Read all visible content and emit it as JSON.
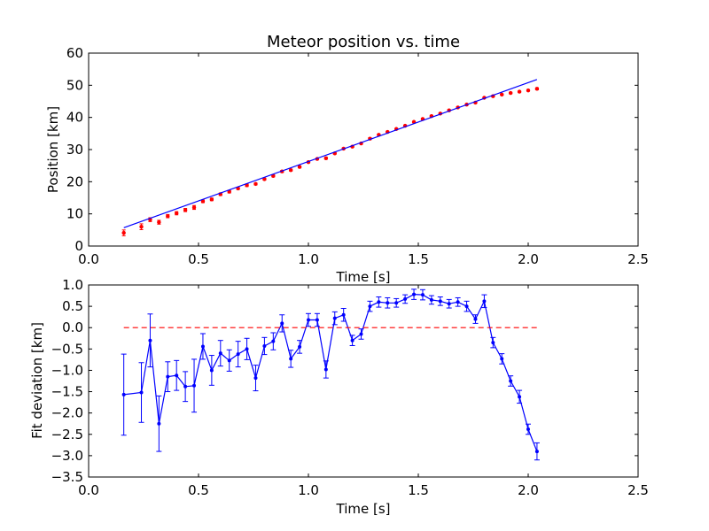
{
  "figure": {
    "title": "Meteor position vs. time"
  },
  "chart_data": [
    {
      "type": "scatter",
      "title": "Meteor position vs. time",
      "xlabel": "Time [s]",
      "ylabel": "Position [km]",
      "xlim": [
        0.0,
        2.5
      ],
      "ylim": [
        0,
        60
      ],
      "xticks": [
        0.0,
        0.5,
        1.0,
        1.5,
        2.0,
        2.5
      ],
      "yticks": [
        0,
        10,
        20,
        30,
        40,
        50,
        60
      ],
      "xtick_labels": [
        "0.0",
        "0.5",
        "1.0",
        "1.5",
        "2.0",
        "2.5"
      ],
      "ytick_labels": [
        "0",
        "10",
        "20",
        "30",
        "40",
        "50",
        "60"
      ],
      "grid": false,
      "series": [
        {
          "style": "error-points",
          "color": "#ff0000",
          "x": [
            0.16,
            0.24,
            0.28,
            0.32,
            0.36,
            0.4,
            0.44,
            0.48,
            0.52,
            0.56,
            0.6,
            0.64,
            0.68,
            0.72,
            0.76,
            0.8,
            0.84,
            0.88,
            0.92,
            0.96,
            1.0,
            1.04,
            1.08,
            1.12,
            1.16,
            1.2,
            1.24,
            1.28,
            1.32,
            1.36,
            1.4,
            1.44,
            1.48,
            1.52,
            1.56,
            1.6,
            1.64,
            1.68,
            1.72,
            1.76,
            1.8,
            1.84,
            1.88,
            1.92,
            1.96,
            2.0,
            2.04
          ],
          "y": [
            4.1,
            6.0,
            8.2,
            7.4,
            9.3,
            10.2,
            11.2,
            12.0,
            13.9,
            14.5,
            16.1,
            16.9,
            17.9,
            18.9,
            19.3,
            20.8,
            21.8,
            23.2,
            23.6,
            24.6,
            26.1,
            27.1,
            27.3,
            28.8,
            30.3,
            30.9,
            31.9,
            33.4,
            34.6,
            35.5,
            36.4,
            37.4,
            38.6,
            39.5,
            40.4,
            41.2,
            42.2,
            43.1,
            44.0,
            44.6,
            46.1,
            46.6,
            47.1,
            47.6,
            48.0,
            48.4,
            48.9
          ],
          "err": [
            0.9,
            0.9,
            0.6,
            0.6,
            0.5,
            0.5,
            0.5,
            0.6,
            0.4,
            0.4,
            0.4,
            0.4,
            0.3,
            0.4,
            0.3,
            0.3,
            0.3,
            0.3,
            0.3,
            0.3,
            0.2,
            0.2,
            0.3,
            0.2,
            0.2,
            0.2,
            0.2,
            0.3,
            0.2,
            0.2,
            0.2,
            0.2,
            0.2,
            0.2,
            0.2,
            0.2,
            0.2,
            0.2,
            0.2,
            0.2,
            0.2,
            0.2,
            0.2,
            0.2,
            0.2,
            0.2,
            0.3
          ]
        },
        {
          "style": "line",
          "color": "#0000ff",
          "x": [
            0.16,
            2.04
          ],
          "y": [
            5.7,
            51.8
          ]
        }
      ]
    },
    {
      "type": "line",
      "title": "",
      "xlabel": "Time [s]",
      "ylabel": "Fit deviation [km]",
      "xlim": [
        0.0,
        2.5
      ],
      "ylim": [
        -3.5,
        1.0
      ],
      "xticks": [
        0.0,
        0.5,
        1.0,
        1.5,
        2.0,
        2.5
      ],
      "yticks": [
        1.0,
        0.5,
        0.0,
        -0.5,
        -1.0,
        -1.5,
        -2.0,
        -2.5,
        -3.0,
        -3.5
      ],
      "xtick_labels": [
        "0.0",
        "0.5",
        "1.0",
        "1.5",
        "2.0",
        "2.5"
      ],
      "ytick_labels": [
        "1.0",
        "0.5",
        "0.0",
        "−0.5",
        "−1.0",
        "−1.5",
        "−2.0",
        "−2.5",
        "−3.0",
        "−3.5"
      ],
      "grid": false,
      "series": [
        {
          "style": "line-errorbar",
          "color": "#0000ff",
          "x": [
            0.16,
            0.24,
            0.28,
            0.32,
            0.36,
            0.4,
            0.44,
            0.48,
            0.52,
            0.56,
            0.6,
            0.64,
            0.68,
            0.72,
            0.76,
            0.8,
            0.84,
            0.88,
            0.92,
            0.96,
            1.0,
            1.04,
            1.08,
            1.12,
            1.16,
            1.2,
            1.24,
            1.28,
            1.32,
            1.36,
            1.4,
            1.44,
            1.48,
            1.52,
            1.56,
            1.6,
            1.64,
            1.68,
            1.72,
            1.76,
            1.8,
            1.84,
            1.88,
            1.92,
            1.96,
            2.0,
            2.04
          ],
          "y": [
            -1.57,
            -1.52,
            -0.3,
            -2.25,
            -1.15,
            -1.12,
            -1.38,
            -1.36,
            -0.44,
            -1.0,
            -0.6,
            -0.77,
            -0.62,
            -0.5,
            -1.18,
            -0.43,
            -0.32,
            0.1,
            -0.73,
            -0.45,
            0.18,
            0.18,
            -0.98,
            0.22,
            0.3,
            -0.3,
            -0.15,
            0.5,
            0.6,
            0.58,
            0.58,
            0.67,
            0.78,
            0.77,
            0.65,
            0.62,
            0.56,
            0.6,
            0.5,
            0.2,
            0.62,
            -0.35,
            -0.73,
            -1.25,
            -1.62,
            -2.38,
            -2.9
          ],
          "err": [
            0.95,
            0.7,
            0.62,
            0.65,
            0.35,
            0.35,
            0.35,
            0.62,
            0.3,
            0.35,
            0.3,
            0.25,
            0.3,
            0.25,
            0.3,
            0.2,
            0.2,
            0.2,
            0.2,
            0.15,
            0.15,
            0.15,
            0.2,
            0.15,
            0.15,
            0.12,
            0.12,
            0.12,
            0.12,
            0.12,
            0.1,
            0.1,
            0.12,
            0.12,
            0.1,
            0.1,
            0.1,
            0.1,
            0.12,
            0.1,
            0.15,
            0.12,
            0.12,
            0.12,
            0.15,
            0.12,
            0.2
          ]
        },
        {
          "style": "dashed",
          "color": "#ff0000",
          "x": [
            0.16,
            2.04
          ],
          "y": [
            0.0,
            0.0
          ]
        }
      ]
    }
  ]
}
